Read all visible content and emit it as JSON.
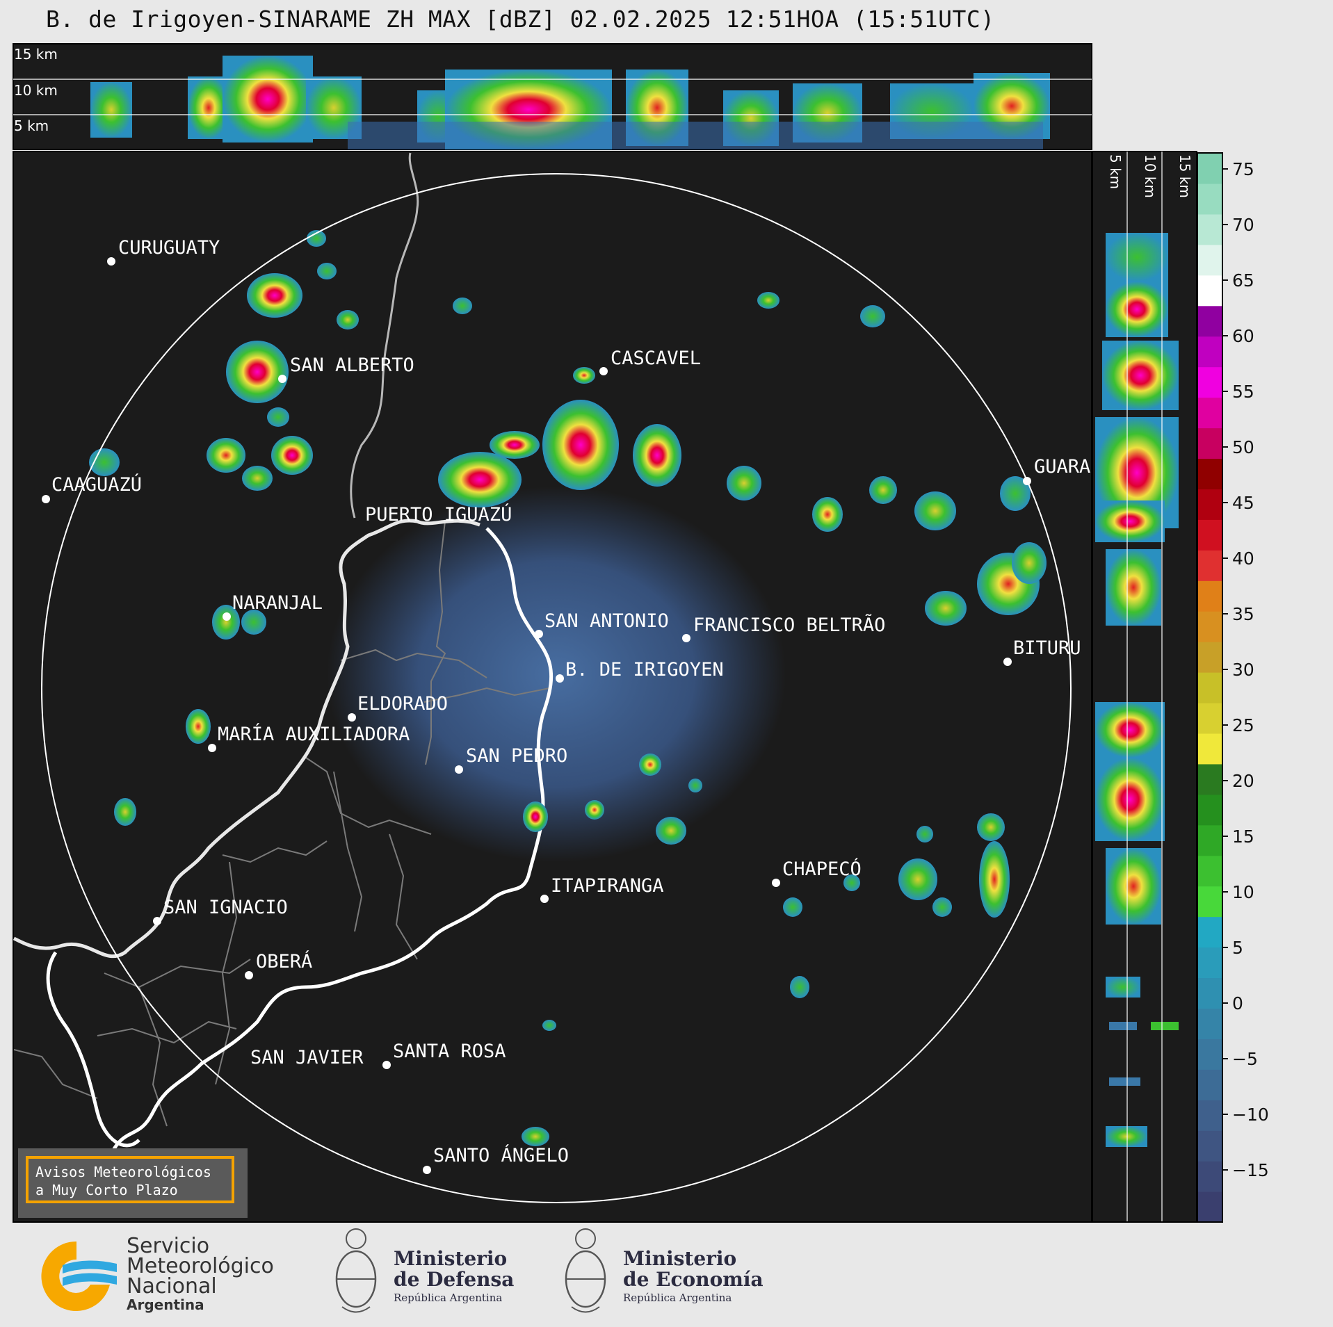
{
  "header": {
    "title": "B. de Irigoyen-SINARAME ZH MAX [dBZ] 02.02.2025 12:51HOA (15:51UTC)"
  },
  "altitude_labels": {
    "top": [
      "15 km",
      "10 km",
      "5 km"
    ],
    "side": [
      "5 km",
      "10 km",
      "15 km"
    ]
  },
  "cities": [
    {
      "name": "CURUGUATY"
    },
    {
      "name": "SAN ALBERTO"
    },
    {
      "name": "CASCAVEL"
    },
    {
      "name": "CAAGUAZÚ"
    },
    {
      "name": "PUERTO IGUAZÚ"
    },
    {
      "name": "GUARA"
    },
    {
      "name": "NARANJAL"
    },
    {
      "name": "SAN ANTONIO"
    },
    {
      "name": "FRANCISCO BELTRÃO"
    },
    {
      "name": "BITURU"
    },
    {
      "name": "B. DE IRIGOYEN"
    },
    {
      "name": "ELDORADO"
    },
    {
      "name": "MARÍA AUXILIADORA"
    },
    {
      "name": "SAN PEDRO"
    },
    {
      "name": "CHAPECÓ"
    },
    {
      "name": "ITAPIRANGA"
    },
    {
      "name": "SAN IGNACIO"
    },
    {
      "name": "OBERÁ"
    },
    {
      "name": "SAN JAVIER"
    },
    {
      "name": "SANTA ROSA"
    },
    {
      "name": "SANTO ÁNGELO"
    }
  ],
  "colorbar": {
    "ticks": [
      "75",
      "70",
      "65",
      "60",
      "55",
      "50",
      "45",
      "40",
      "35",
      "30",
      "25",
      "20",
      "15",
      "10",
      "5",
      "0",
      "−5",
      "−10",
      "−15"
    ],
    "colors": [
      "#3a3f6e",
      "#3d4a78",
      "#3f5582",
      "#3f608c",
      "#3d6c96",
      "#3a789f",
      "#3584a8",
      "#2f90b1",
      "#2a9cba",
      "#22a8c3",
      "#48d83a",
      "#3cc030",
      "#2fa826",
      "#25901e",
      "#2a7a20",
      "#f0e83a",
      "#d8d030",
      "#c8c028",
      "#c8a028",
      "#d89020",
      "#e08018",
      "#e03030",
      "#d01020",
      "#b00010",
      "#900000",
      "#c80060",
      "#e000a0",
      "#f000e0",
      "#c000c0",
      "#9000a0",
      "#ffffff",
      "#e0f4ec",
      "#b8e8d4",
      "#98dcc0",
      "#80d0b0"
    ]
  },
  "notice": {
    "line1": "Avisos Meteorológicos",
    "line2": "a Muy Corto Plazo"
  },
  "footer": {
    "smn_line1": "Servicio",
    "smn_line2": "Meteorológico",
    "smn_line3": "Nacional",
    "smn_line4": "Argentina",
    "defensa_a": "Ministerio",
    "defensa_b": "de Defensa",
    "defensa_c": "República Argentina",
    "economia_a": "Ministerio",
    "economia_b": "de Economía",
    "economia_c": "República Argentina"
  },
  "colors": {
    "map_bg": "#1b1b1b",
    "page_bg": "#e8e8e8",
    "notice_border": "#f5a300"
  }
}
